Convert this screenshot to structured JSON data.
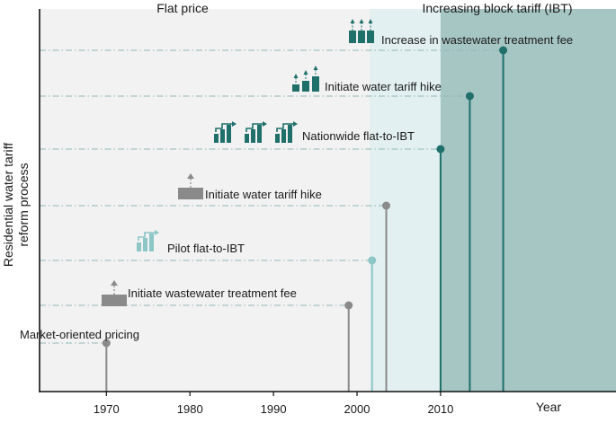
{
  "chart_data": {
    "type": "timeline",
    "ylabel_lines": [
      "Residential  water tariff",
      "reform process"
    ],
    "xlabel": "Year",
    "x_ticks": [
      1970,
      1980,
      1990,
      2000,
      2010
    ],
    "xlim": [
      1962,
      2031
    ],
    "ylim": [
      0,
      8
    ],
    "phases": [
      {
        "name": "Flat price",
        "start": 1962,
        "end": 2001.6,
        "color": "#f2f2f2"
      },
      {
        "name": "Increasing block tariff (IBT)",
        "start": 2001.6,
        "end": 2031,
        "color": "#a6c6c4"
      }
    ],
    "overlap_band": {
      "start": 2001.6,
      "end": 2010,
      "color": "#e3f0f1"
    },
    "events": [
      {
        "label": "Market-oriented pricing",
        "year": 1970,
        "level": 1,
        "color": "#8a8a8a",
        "icon": "none"
      },
      {
        "label": "Initiate wastewater treatment fee",
        "year": 1999,
        "level": 2,
        "color": "#8a8a8a",
        "icon": "fee-arrow-icon"
      },
      {
        "label": "Pilot flat-to-IBT",
        "year": 2001.8,
        "level": 3,
        "color": "#8cc6c6",
        "icon": "block-step-icon"
      },
      {
        "label": "Initiate water tariff hike",
        "year": 2003.5,
        "level": 4,
        "color": "#8a8a8a",
        "icon": "fee-arrow-icon"
      },
      {
        "label": "Nationwide flat-to-IBT",
        "year": 2010,
        "level": 5,
        "color": "#1f6f6b",
        "icon": "block-step-icon"
      },
      {
        "label": "Initiate water tariff hike",
        "year": 2013.5,
        "level": 6,
        "color": "#1f6f6b",
        "icon": "bar-hike-icon"
      },
      {
        "label": "Increase in wastewater treatment fee",
        "year": 2017.5,
        "level": 7,
        "color": "#1f6f6b",
        "icon": "triple-hike-icon"
      }
    ],
    "grid": "dash-dot horizontal guide per event"
  }
}
